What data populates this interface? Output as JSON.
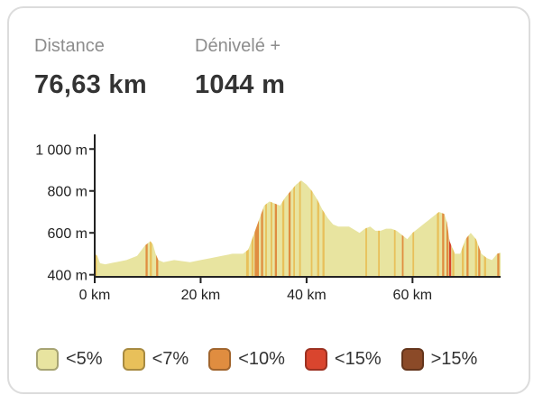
{
  "stats": {
    "distance": {
      "label": "Distance",
      "value": "76,63 km"
    },
    "elevation_gain": {
      "label": "Dénivelé +",
      "value": "1044 m"
    }
  },
  "legend": [
    {
      "label": "<5%",
      "color": "#e8e4a0"
    },
    {
      "label": "<7%",
      "color": "#e8c05a"
    },
    {
      "label": "<10%",
      "color": "#e08d40"
    },
    {
      "label": "<15%",
      "color": "#d9452e"
    },
    {
      "label": ">15%",
      "color": "#8b4a28"
    }
  ],
  "chart_data": {
    "type": "area",
    "title": "",
    "xlabel": "",
    "ylabel": "",
    "xlim": [
      0,
      76.63
    ],
    "ylim": [
      390,
      1070
    ],
    "x_ticks": [
      {
        "value": 0,
        "label": "0 km"
      },
      {
        "value": 20,
        "label": "20 km"
      },
      {
        "value": 40,
        "label": "40 km"
      },
      {
        "value": 60,
        "label": "60 km"
      }
    ],
    "y_ticks": [
      {
        "value": 400,
        "label": "400 m"
      },
      {
        "value": 600,
        "label": "600 m"
      },
      {
        "value": 800,
        "label": "800 m"
      },
      {
        "value": 1000,
        "label": "1 000 m"
      }
    ],
    "x": [
      0,
      0.5,
      1,
      2,
      4,
      6,
      8,
      9.5,
      10.5,
      11,
      11.5,
      12,
      13,
      15,
      18,
      20,
      22,
      24,
      26,
      28,
      29,
      30,
      31,
      32,
      33,
      34,
      35,
      36,
      37,
      38,
      39,
      40,
      41,
      42,
      43,
      44,
      45,
      46,
      48,
      50,
      51,
      52,
      53,
      54,
      55,
      56,
      57,
      58,
      59,
      60,
      61,
      62,
      63,
      64,
      65,
      66,
      66.5,
      67,
      68,
      69,
      70,
      71,
      72,
      73,
      74,
      75,
      76,
      76.63
    ],
    "elevation": [
      500,
      490,
      455,
      450,
      460,
      470,
      490,
      540,
      560,
      545,
      500,
      470,
      460,
      470,
      460,
      470,
      480,
      490,
      500,
      500,
      520,
      590,
      660,
      730,
      750,
      740,
      730,
      770,
      800,
      830,
      850,
      830,
      800,
      760,
      710,
      670,
      640,
      630,
      630,
      600,
      620,
      630,
      610,
      610,
      620,
      620,
      610,
      590,
      570,
      600,
      620,
      640,
      660,
      680,
      700,
      690,
      650,
      560,
      500,
      500,
      570,
      600,
      570,
      500,
      480,
      470,
      500,
      505
    ],
    "grade_bands": [
      {
        "from": 0,
        "to": 0.4,
        "class": "<7%"
      },
      {
        "from": 9.6,
        "to": 10.0,
        "class": "<10%"
      },
      {
        "from": 10.4,
        "to": 10.8,
        "class": "<7%"
      },
      {
        "from": 11.6,
        "to": 12.0,
        "class": "<10%"
      },
      {
        "from": 28.6,
        "to": 29.1,
        "class": "<7%"
      },
      {
        "from": 29.6,
        "to": 30.0,
        "class": "<7%"
      },
      {
        "from": 30.2,
        "to": 31.0,
        "class": "<10%"
      },
      {
        "from": 31.4,
        "to": 31.8,
        "class": "<10%"
      },
      {
        "from": 32.2,
        "to": 32.5,
        "class": "<7%"
      },
      {
        "from": 33.2,
        "to": 33.5,
        "class": "<7%"
      },
      {
        "from": 34.0,
        "to": 34.4,
        "class": "<10%"
      },
      {
        "from": 35.4,
        "to": 35.8,
        "class": "<7%"
      },
      {
        "from": 36.6,
        "to": 37.0,
        "class": "<10%"
      },
      {
        "from": 37.5,
        "to": 37.8,
        "class": "<7%"
      },
      {
        "from": 38.6,
        "to": 38.9,
        "class": "<7%"
      },
      {
        "from": 40.8,
        "to": 41.1,
        "class": "<7%"
      },
      {
        "from": 42.0,
        "to": 42.4,
        "class": "<7%"
      },
      {
        "from": 43.0,
        "to": 43.4,
        "class": "<7%"
      },
      {
        "from": 51.1,
        "to": 51.4,
        "class": "<7%"
      },
      {
        "from": 53.5,
        "to": 53.8,
        "class": "<7%"
      },
      {
        "from": 56.5,
        "to": 56.8,
        "class": "<7%"
      },
      {
        "from": 58.0,
        "to": 58.3,
        "class": "<10%"
      },
      {
        "from": 60.0,
        "to": 60.3,
        "class": "<7%"
      },
      {
        "from": 64.6,
        "to": 65.0,
        "class": "<7%"
      },
      {
        "from": 65.6,
        "to": 66.0,
        "class": "<10%"
      },
      {
        "from": 66.4,
        "to": 66.8,
        "class": "<10%"
      },
      {
        "from": 66.9,
        "to": 67.3,
        "class": "<15%"
      },
      {
        "from": 67.5,
        "to": 67.9,
        "class": "<7%"
      },
      {
        "from": 69.3,
        "to": 69.7,
        "class": "<7%"
      },
      {
        "from": 70.2,
        "to": 70.6,
        "class": "<10%"
      },
      {
        "from": 71.8,
        "to": 72.2,
        "class": "<7%"
      },
      {
        "from": 72.4,
        "to": 72.8,
        "class": "<10%"
      },
      {
        "from": 73.5,
        "to": 73.9,
        "class": "<7%"
      },
      {
        "from": 76.0,
        "to": 76.4,
        "class": "<10%"
      }
    ]
  }
}
